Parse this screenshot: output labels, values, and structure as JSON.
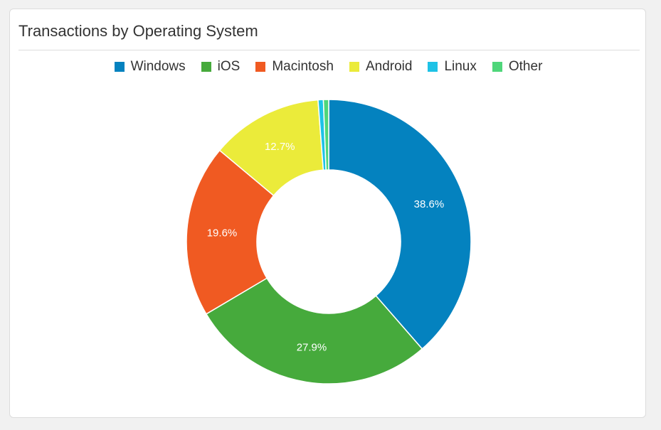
{
  "chart_data": {
    "type": "pie",
    "title": "Transactions by Operating System",
    "donut": true,
    "legend_position": "top",
    "slices": [
      {
        "name": "Windows",
        "value": 38.6,
        "label": "38.6%",
        "color": "#0482bf"
      },
      {
        "name": "iOS",
        "value": 27.9,
        "label": "27.9%",
        "color": "#46aa3c"
      },
      {
        "name": "Macintosh",
        "value": 19.6,
        "label": "19.6%",
        "color": "#f05a22"
      },
      {
        "name": "Android",
        "value": 12.7,
        "label": "12.7%",
        "color": "#ebeb3a"
      },
      {
        "name": "Linux",
        "value": 0.6,
        "label": "",
        "color": "#1ec2e6"
      },
      {
        "name": "Other",
        "value": 0.6,
        "label": "",
        "color": "#4fd67a"
      }
    ]
  }
}
